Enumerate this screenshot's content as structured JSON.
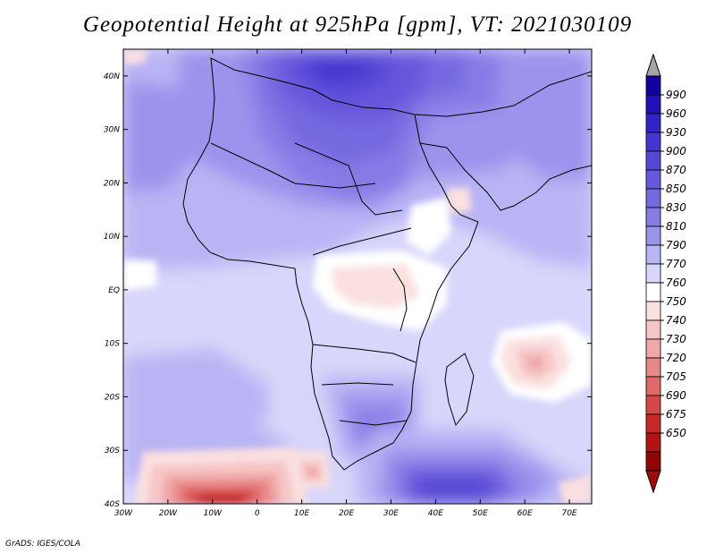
{
  "title": "Geopotential Height at 925hPa [gpm], VT: 2021030109",
  "credit": "GrADS: IGES/COLA",
  "map": {
    "variable": "Geopotential Height",
    "level": "925hPa",
    "units": "gpm",
    "valid_time": "2021030109",
    "lon_range": [
      -30,
      75
    ],
    "lat_range": [
      -40,
      45
    ],
    "lon_ticks": [
      "30W",
      "20W",
      "10W",
      "0",
      "10E",
      "20E",
      "30E",
      "40E",
      "50E",
      "60E",
      "70E"
    ],
    "lat_ticks": [
      "40N",
      "30N",
      "20N",
      "10N",
      "EQ",
      "10S",
      "20S",
      "30S",
      "40S"
    ]
  },
  "colorbar": {
    "labels": [
      "990",
      "960",
      "930",
      "900",
      "870",
      "850",
      "830",
      "810",
      "790",
      "770",
      "760",
      "750",
      "740",
      "730",
      "720",
      "705",
      "690",
      "675",
      "650"
    ],
    "colors": [
      "#14009e",
      "#2211b4",
      "#3324c4",
      "#4536cf",
      "#5648d6",
      "#6657dc",
      "#7569e0",
      "#877ce6",
      "#9c93ec",
      "#b9b4f4",
      "#d8d6fa",
      "#ffffff",
      "#fbe0e0",
      "#f6c6c6",
      "#f0a8a8",
      "#e98888",
      "#e06868",
      "#d44848",
      "#c42a2a",
      "#b01414",
      "#8e0606"
    ],
    "over_color": "#a5a5a5",
    "under_color": "#a00a0a"
  }
}
